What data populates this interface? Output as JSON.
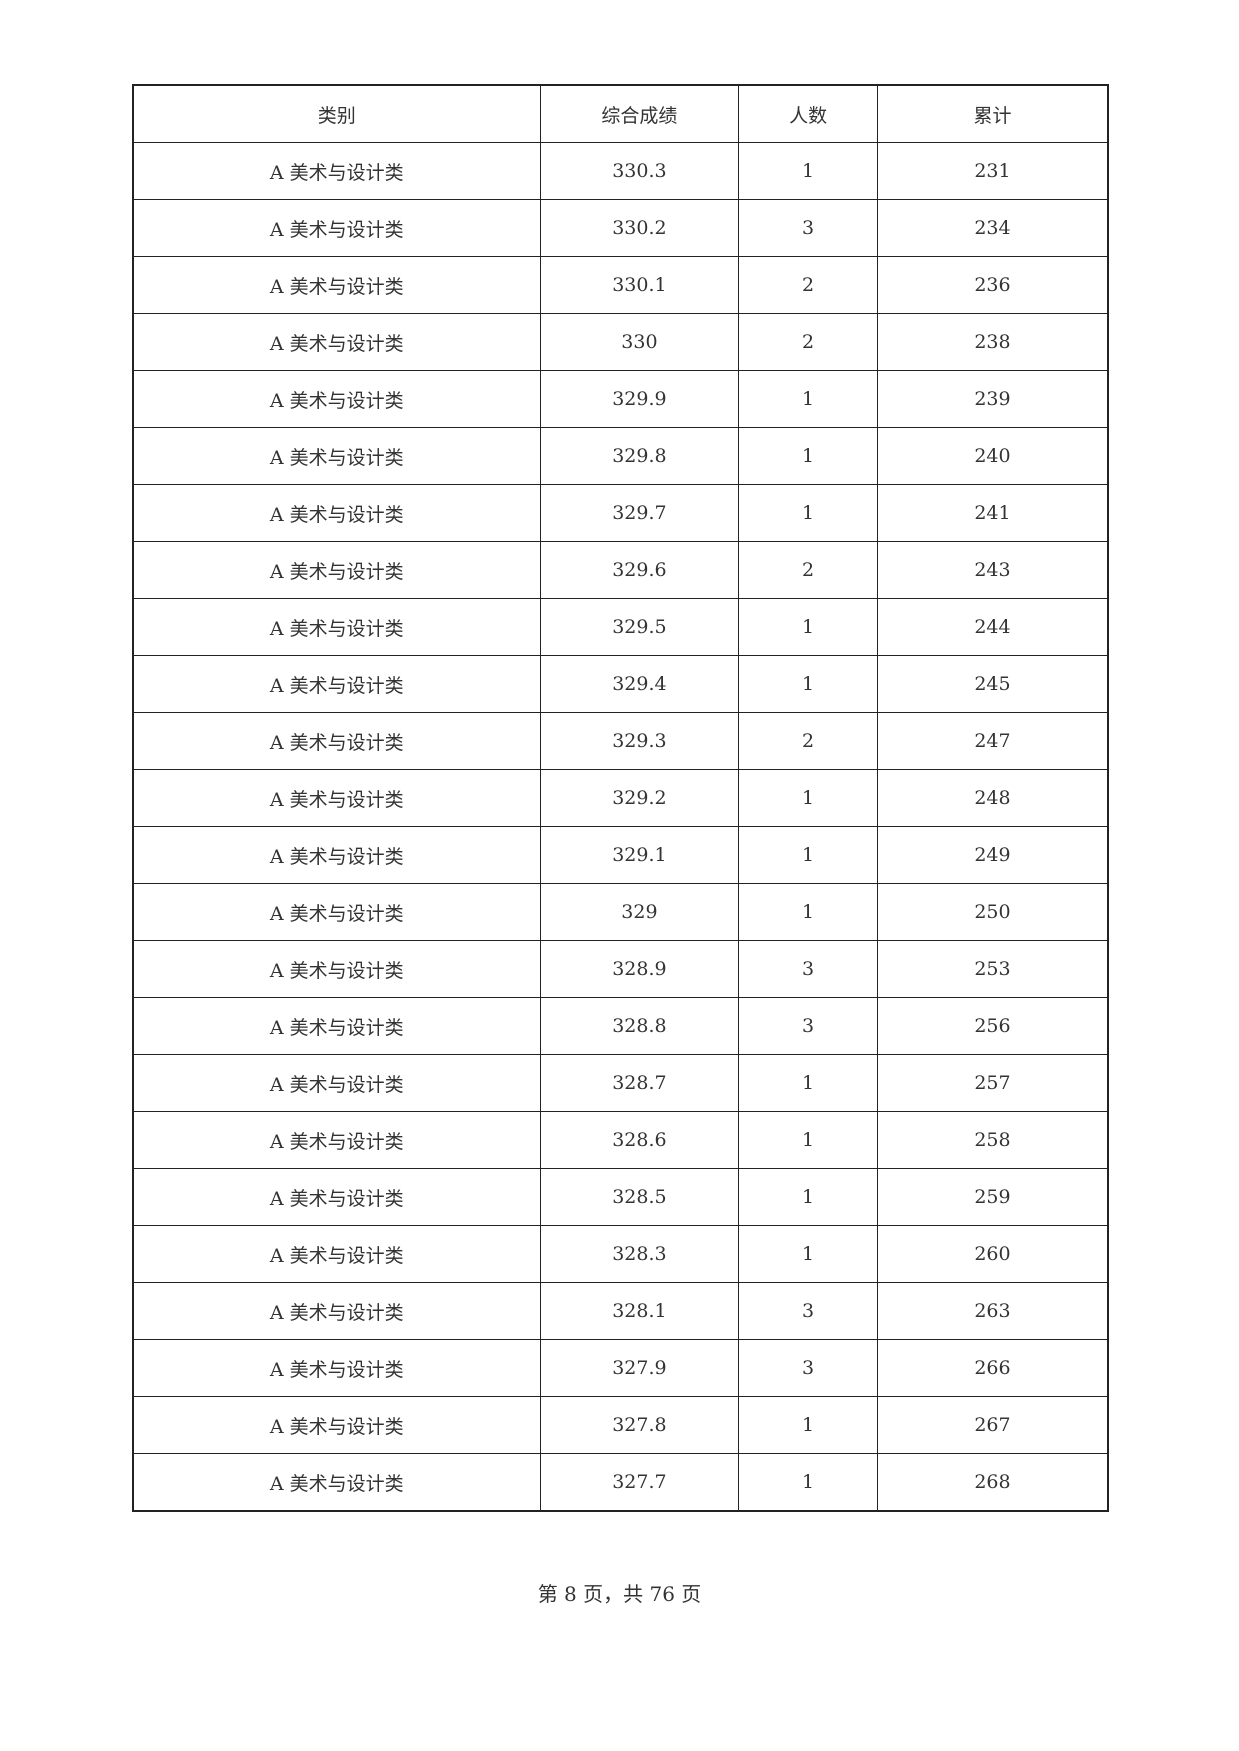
{
  "table": {
    "headers": [
      "类别",
      "综合成绩",
      "人数",
      "累计"
    ],
    "rows": [
      [
        "A 美术与设计类",
        "330.3",
        "1",
        "231"
      ],
      [
        "A 美术与设计类",
        "330.2",
        "3",
        "234"
      ],
      [
        "A 美术与设计类",
        "330.1",
        "2",
        "236"
      ],
      [
        "A 美术与设计类",
        "330",
        "2",
        "238"
      ],
      [
        "A 美术与设计类",
        "329.9",
        "1",
        "239"
      ],
      [
        "A 美术与设计类",
        "329.8",
        "1",
        "240"
      ],
      [
        "A 美术与设计类",
        "329.7",
        "1",
        "241"
      ],
      [
        "A 美术与设计类",
        "329.6",
        "2",
        "243"
      ],
      [
        "A 美术与设计类",
        "329.5",
        "1",
        "244"
      ],
      [
        "A 美术与设计类",
        "329.4",
        "1",
        "245"
      ],
      [
        "A 美术与设计类",
        "329.3",
        "2",
        "247"
      ],
      [
        "A 美术与设计类",
        "329.2",
        "1",
        "248"
      ],
      [
        "A 美术与设计类",
        "329.1",
        "1",
        "249"
      ],
      [
        "A 美术与设计类",
        "329",
        "1",
        "250"
      ],
      [
        "A 美术与设计类",
        "328.9",
        "3",
        "253"
      ],
      [
        "A 美术与设计类",
        "328.8",
        "3",
        "256"
      ],
      [
        "A 美术与设计类",
        "328.7",
        "1",
        "257"
      ],
      [
        "A 美术与设计类",
        "328.6",
        "1",
        "258"
      ],
      [
        "A 美术与设计类",
        "328.5",
        "1",
        "259"
      ],
      [
        "A 美术与设计类",
        "328.3",
        "1",
        "260"
      ],
      [
        "A 美术与设计类",
        "328.1",
        "3",
        "263"
      ],
      [
        "A 美术与设计类",
        "327.9",
        "3",
        "266"
      ],
      [
        "A 美术与设计类",
        "327.8",
        "1",
        "267"
      ],
      [
        "A 美术与设计类",
        "327.7",
        "1",
        "268"
      ]
    ]
  },
  "footer": {
    "page_label": "第 8 页，共 76 页"
  }
}
